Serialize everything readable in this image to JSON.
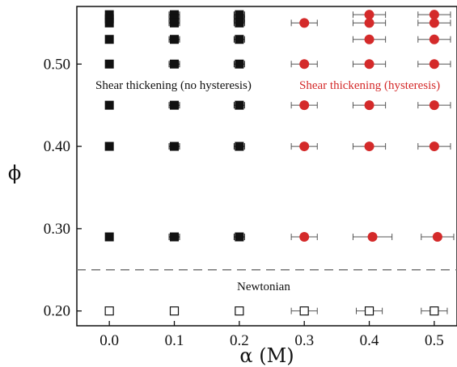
{
  "chart_data": {
    "type": "scatter",
    "xlabel": "α (M)",
    "ylabel": "ϕ",
    "xlim": [
      -0.05,
      0.535
    ],
    "ylim": [
      0.182,
      0.57
    ],
    "xticks": [
      0.0,
      0.1,
      0.2,
      0.3,
      0.4,
      0.5
    ],
    "xtick_labels": [
      "0.0",
      "0.1",
      "0.2",
      "0.3",
      "0.4",
      "0.5"
    ],
    "yticks": [
      0.2,
      0.3,
      0.4,
      0.5
    ],
    "ytick_labels": [
      "0.20",
      "0.30",
      "0.40",
      "0.50"
    ],
    "grid": false,
    "threshold_line": {
      "y": 0.25,
      "style": "dashed",
      "color": "#777777"
    },
    "annotations": [
      {
        "id": "st-no-hyst",
        "text": "Shear thickening (no hysteresis)",
        "color": "#111111"
      },
      {
        "id": "st-hyst",
        "text": "Shear thickening (hysteresis)",
        "color": "#d42a2a"
      },
      {
        "id": "newtonian",
        "text": "Newtonian",
        "color": "#111111"
      }
    ],
    "series": [
      {
        "marker": "filled-square",
        "color": "#111111",
        "points": [
          {
            "x": 0.0,
            "y": 0.56,
            "xerr": 0
          },
          {
            "x": 0.0,
            "y": 0.555,
            "xerr": 0
          },
          {
            "x": 0.0,
            "y": 0.55,
            "xerr": 0
          },
          {
            "x": 0.0,
            "y": 0.53,
            "xerr": 0
          },
          {
            "x": 0.0,
            "y": 0.5,
            "xerr": 0
          },
          {
            "x": 0.0,
            "y": 0.45,
            "xerr": 0
          },
          {
            "x": 0.0,
            "y": 0.4,
            "xerr": 0
          },
          {
            "x": 0.0,
            "y": 0.29,
            "xerr": 0
          },
          {
            "x": 0.1,
            "y": 0.56,
            "xerr": 0.008
          },
          {
            "x": 0.1,
            "y": 0.555,
            "xerr": 0.008
          },
          {
            "x": 0.1,
            "y": 0.55,
            "xerr": 0.008
          },
          {
            "x": 0.1,
            "y": 0.53,
            "xerr": 0.008
          },
          {
            "x": 0.1,
            "y": 0.5,
            "xerr": 0.008
          },
          {
            "x": 0.1,
            "y": 0.45,
            "xerr": 0.008
          },
          {
            "x": 0.1,
            "y": 0.4,
            "xerr": 0.008
          },
          {
            "x": 0.1,
            "y": 0.29,
            "xerr": 0.008
          },
          {
            "x": 0.2,
            "y": 0.56,
            "xerr": 0.008
          },
          {
            "x": 0.2,
            "y": 0.555,
            "xerr": 0.008
          },
          {
            "x": 0.2,
            "y": 0.55,
            "xerr": 0.008
          },
          {
            "x": 0.2,
            "y": 0.53,
            "xerr": 0.008
          },
          {
            "x": 0.2,
            "y": 0.5,
            "xerr": 0.008
          },
          {
            "x": 0.2,
            "y": 0.45,
            "xerr": 0.008
          },
          {
            "x": 0.2,
            "y": 0.4,
            "xerr": 0.008
          },
          {
            "x": 0.2,
            "y": 0.29,
            "xerr": 0.008
          }
        ]
      },
      {
        "marker": "filled-circle",
        "color": "#d42a2a",
        "points": [
          {
            "x": 0.3,
            "y": 0.55,
            "xerr": 0.02
          },
          {
            "x": 0.3,
            "y": 0.5,
            "xerr": 0.02
          },
          {
            "x": 0.3,
            "y": 0.45,
            "xerr": 0.02
          },
          {
            "x": 0.3,
            "y": 0.4,
            "xerr": 0.02
          },
          {
            "x": 0.3,
            "y": 0.29,
            "xerr": 0.02
          },
          {
            "x": 0.4,
            "y": 0.56,
            "xerr": 0.025
          },
          {
            "x": 0.4,
            "y": 0.55,
            "xerr": 0.025
          },
          {
            "x": 0.4,
            "y": 0.53,
            "xerr": 0.025
          },
          {
            "x": 0.4,
            "y": 0.5,
            "xerr": 0.025
          },
          {
            "x": 0.4,
            "y": 0.45,
            "xerr": 0.025
          },
          {
            "x": 0.4,
            "y": 0.4,
            "xerr": 0.025
          },
          {
            "x": 0.405,
            "y": 0.29,
            "xerr": 0.03
          },
          {
            "x": 0.5,
            "y": 0.56,
            "xerr": 0.025
          },
          {
            "x": 0.5,
            "y": 0.55,
            "xerr": 0.025
          },
          {
            "x": 0.5,
            "y": 0.53,
            "xerr": 0.025
          },
          {
            "x": 0.5,
            "y": 0.5,
            "xerr": 0.025
          },
          {
            "x": 0.5,
            "y": 0.45,
            "xerr": 0.025
          },
          {
            "x": 0.5,
            "y": 0.4,
            "xerr": 0.025
          },
          {
            "x": 0.505,
            "y": 0.29,
            "xerr": 0.025
          }
        ]
      },
      {
        "marker": "open-square",
        "color": "#111111",
        "points": [
          {
            "x": 0.0,
            "y": 0.2,
            "xerr": 0
          },
          {
            "x": 0.1,
            "y": 0.2,
            "xerr": 0
          },
          {
            "x": 0.2,
            "y": 0.2,
            "xerr": 0
          },
          {
            "x": 0.3,
            "y": 0.2,
            "xerr": 0.02
          },
          {
            "x": 0.4,
            "y": 0.2,
            "xerr": 0.02
          },
          {
            "x": 0.5,
            "y": 0.2,
            "xerr": 0.02
          }
        ]
      }
    ]
  }
}
